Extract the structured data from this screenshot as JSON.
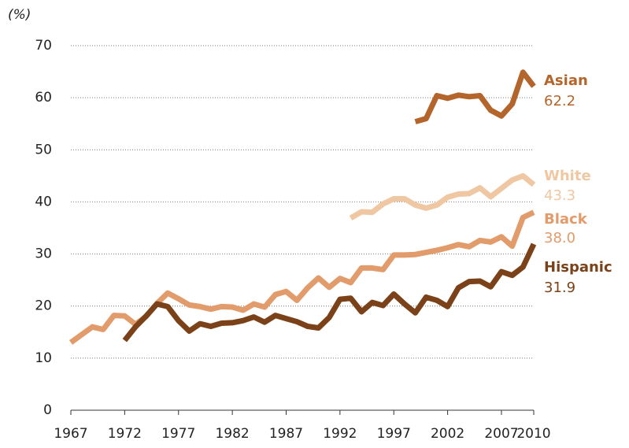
{
  "chart_data": {
    "type": "line",
    "y_label": "(%)",
    "x": [
      1967,
      1968,
      1969,
      1970,
      1971,
      1972,
      1973,
      1974,
      1975,
      1976,
      1977,
      1978,
      1979,
      1980,
      1981,
      1982,
      1983,
      1984,
      1985,
      1986,
      1987,
      1988,
      1989,
      1990,
      1991,
      1992,
      1993,
      1994,
      1995,
      1996,
      1997,
      1998,
      1999,
      2000,
      2001,
      2002,
      2003,
      2004,
      2005,
      2006,
      2007,
      2008,
      2009,
      2010
    ],
    "series": [
      {
        "name": "Asian",
        "color": "#b3652b",
        "values": [
          null,
          null,
          null,
          null,
          null,
          null,
          null,
          null,
          null,
          null,
          null,
          null,
          null,
          null,
          null,
          null,
          null,
          null,
          null,
          null,
          null,
          null,
          null,
          null,
          null,
          null,
          null,
          null,
          null,
          null,
          null,
          null,
          55.4,
          56.0,
          60.4,
          59.9,
          60.5,
          60.2,
          60.4,
          57.6,
          56.5,
          58.8,
          64.9,
          62.2
        ],
        "value_labels": [
          null,
          null,
          null,
          null,
          null,
          null,
          null,
          null,
          null,
          null,
          null,
          null,
          null,
          null,
          null,
          null,
          null,
          null,
          null,
          null,
          null,
          null,
          null,
          null,
          null,
          null,
          null,
          null,
          null,
          null,
          null,
          null,
          null,
          null,
          null,
          null,
          null,
          null,
          null,
          null,
          null,
          null,
          null,
          "62.2"
        ]
      },
      {
        "name": "White",
        "color": "#efc7a2",
        "values": [
          null,
          null,
          null,
          null,
          null,
          null,
          null,
          null,
          null,
          null,
          null,
          null,
          null,
          null,
          null,
          null,
          null,
          null,
          null,
          null,
          null,
          null,
          null,
          null,
          null,
          null,
          36.9,
          38.1,
          38.0,
          39.6,
          40.6,
          40.6,
          39.4,
          38.8,
          39.4,
          40.9,
          41.5,
          41.6,
          42.7,
          41.0,
          42.6,
          44.2,
          45.0,
          43.3
        ],
        "value_labels": [
          null,
          null,
          null,
          null,
          null,
          null,
          null,
          null,
          null,
          null,
          null,
          null,
          null,
          null,
          null,
          null,
          null,
          null,
          null,
          null,
          null,
          null,
          null,
          null,
          null,
          null,
          null,
          null,
          null,
          null,
          null,
          null,
          null,
          null,
          null,
          null,
          null,
          null,
          null,
          null,
          null,
          null,
          null,
          "43.3"
        ]
      },
      {
        "name": "Black",
        "color": "#e29b6b",
        "values": [
          13.0,
          14.5,
          16.0,
          15.5,
          18.2,
          18.1,
          16.5,
          18.0,
          20.5,
          22.5,
          21.4,
          20.2,
          19.9,
          19.4,
          19.9,
          19.8,
          19.2,
          20.4,
          19.8,
          22.2,
          22.8,
          21.1,
          23.5,
          25.4,
          23.6,
          25.3,
          24.5,
          27.3,
          27.3,
          27.0,
          29.8,
          29.8,
          29.9,
          30.3,
          30.7,
          31.2,
          31.8,
          31.4,
          32.6,
          32.3,
          33.3,
          31.5,
          37.0,
          38.0
        ],
        "value_labels": [
          null,
          null,
          null,
          null,
          null,
          null,
          null,
          null,
          null,
          null,
          null,
          null,
          null,
          null,
          null,
          null,
          null,
          null,
          null,
          null,
          null,
          null,
          null,
          null,
          null,
          null,
          null,
          null,
          null,
          null,
          null,
          null,
          null,
          null,
          null,
          null,
          null,
          null,
          null,
          null,
          null,
          null,
          null,
          "38.0"
        ]
      },
      {
        "name": "Hispanic",
        "color": "#7b4219",
        "values": [
          null,
          null,
          null,
          null,
          null,
          13.4,
          16.0,
          18.1,
          20.4,
          19.9,
          17.2,
          15.2,
          16.6,
          16.1,
          16.7,
          16.8,
          17.2,
          17.9,
          16.9,
          18.2,
          17.6,
          17.0,
          16.1,
          15.8,
          17.8,
          21.3,
          21.5,
          18.9,
          20.7,
          20.1,
          22.3,
          20.4,
          18.7,
          21.7,
          21.1,
          19.9,
          23.5,
          24.7,
          24.8,
          23.7,
          26.6,
          25.9,
          27.5,
          31.9
        ],
        "value_labels": [
          null,
          null,
          null,
          null,
          null,
          null,
          null,
          null,
          null,
          null,
          null,
          null,
          null,
          null,
          null,
          null,
          null,
          null,
          null,
          null,
          null,
          null,
          null,
          null,
          null,
          null,
          null,
          null,
          null,
          null,
          null,
          null,
          null,
          null,
          null,
          null,
          null,
          null,
          null,
          null,
          null,
          null,
          null,
          "31.9"
        ]
      }
    ],
    "xlim": [
      1967,
      2010
    ],
    "xticks": [
      1967,
      1972,
      1977,
      1982,
      1987,
      1992,
      1997,
      2002,
      2007,
      2010
    ],
    "ylim": [
      0,
      70
    ],
    "yticks": [
      0,
      10,
      20,
      30,
      40,
      50,
      60,
      70
    ],
    "grid": true
  }
}
